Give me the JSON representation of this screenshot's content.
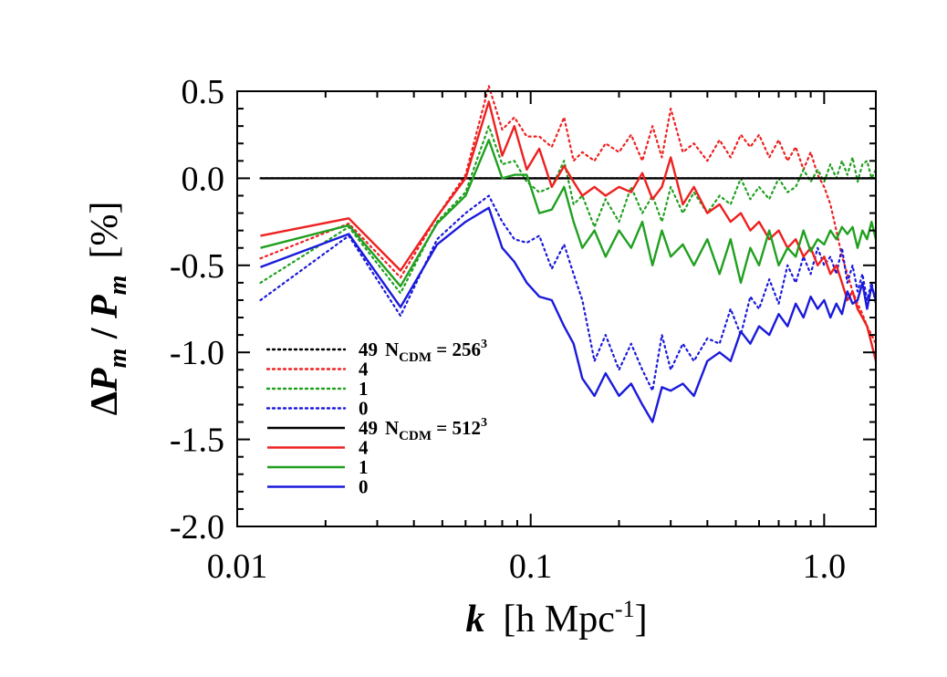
{
  "chart_data": {
    "type": "line",
    "xscale": "log",
    "xlim": [
      0.01,
      1.5
    ],
    "ylim": [
      -2.0,
      0.5
    ],
    "grid": false,
    "legend_position": "bottom-left",
    "xlabel": {
      "k": "k",
      "rest": "[h Mpc",
      "sup": "-1",
      "close": "]"
    },
    "ylabel": {
      "delta": "Δ",
      "p1": "P",
      "sub1": "m",
      "slash": " / ",
      "p2": "P",
      "sub2": "m",
      "unit": "[%]"
    },
    "x_ticks": [
      {
        "value": 0.01,
        "label": "0.01"
      },
      {
        "value": 0.1,
        "label": "0.1"
      },
      {
        "value": 1.0,
        "label": "1.0"
      }
    ],
    "y_ticks": [
      {
        "value": 0.5,
        "label": "0.5"
      },
      {
        "value": 0.0,
        "label": "0.0"
      },
      {
        "value": -0.5,
        "label": "-0.5"
      },
      {
        "value": -1.0,
        "label": "-1.0"
      },
      {
        "value": -1.5,
        "label": "-1.5"
      },
      {
        "value": -2.0,
        "label": "-2.0"
      }
    ],
    "legend": [
      {
        "series": "N256_49",
        "label": "49",
        "suffix": {
          "main": "N",
          "sub": "CDM",
          "eq": " = 256",
          "sup": "3"
        }
      },
      {
        "series": "N256_4",
        "label": "4"
      },
      {
        "series": "N256_1",
        "label": "1"
      },
      {
        "series": "N256_0",
        "label": "0"
      },
      {
        "series": "N512_49",
        "label": "49",
        "suffix": {
          "main": "N",
          "sub": "CDM",
          "eq": " = 512",
          "sup": "3"
        }
      },
      {
        "series": "N512_4",
        "label": "4"
      },
      {
        "series": "N512_1",
        "label": "1"
      },
      {
        "series": "N512_0",
        "label": "0"
      }
    ],
    "series": [
      {
        "id": "N256_49",
        "color": "#000000",
        "style": "dotted",
        "x": [
          0.012,
          0.024,
          0.036,
          0.048,
          0.06,
          0.072,
          0.085,
          0.1,
          0.15,
          0.3,
          0.6,
          1.0,
          1.5
        ],
        "y": [
          0,
          0,
          0,
          0,
          0,
          0,
          0,
          0,
          0,
          0,
          0,
          0,
          0
        ]
      },
      {
        "id": "N256_4",
        "color": "#ee2020",
        "style": "dotted",
        "x": [
          0.012,
          0.024,
          0.036,
          0.048,
          0.06,
          0.072,
          0.08,
          0.088,
          0.097,
          0.107,
          0.118,
          0.13,
          0.14,
          0.15,
          0.165,
          0.18,
          0.2,
          0.22,
          0.24,
          0.26,
          0.28,
          0.3,
          0.33,
          0.36,
          0.4,
          0.44,
          0.48,
          0.52,
          0.56,
          0.6,
          0.65,
          0.7,
          0.75,
          0.8,
          0.85,
          0.9,
          0.95,
          1.0,
          1.05,
          1.1,
          1.15,
          1.2,
          1.25,
          1.3,
          1.35,
          1.4,
          1.45,
          1.5
        ],
        "y": [
          -0.46,
          -0.26,
          -0.57,
          -0.22,
          0.02,
          0.53,
          0.28,
          0.35,
          0.24,
          0.24,
          0.18,
          0.35,
          0.1,
          0.15,
          0.1,
          0.2,
          0.15,
          0.25,
          0.1,
          0.3,
          0.12,
          0.4,
          0.15,
          0.2,
          0.1,
          0.22,
          0.12,
          0.25,
          0.18,
          0.25,
          0.12,
          0.22,
          0.1,
          0.18,
          0.05,
          0.15,
          0.02,
          -0.05,
          -0.15,
          -0.3,
          -0.45,
          -0.55,
          -0.65,
          -0.72,
          -0.78,
          -0.85,
          -0.9,
          -0.95
        ]
      },
      {
        "id": "N256_1",
        "color": "#20a020",
        "style": "dotted",
        "x": [
          0.012,
          0.024,
          0.036,
          0.048,
          0.06,
          0.072,
          0.08,
          0.088,
          0.097,
          0.107,
          0.118,
          0.13,
          0.14,
          0.15,
          0.165,
          0.18,
          0.2,
          0.22,
          0.24,
          0.26,
          0.28,
          0.3,
          0.33,
          0.36,
          0.4,
          0.44,
          0.48,
          0.52,
          0.56,
          0.6,
          0.65,
          0.7,
          0.75,
          0.8,
          0.85,
          0.9,
          0.95,
          1.0,
          1.05,
          1.1,
          1.15,
          1.2,
          1.25,
          1.3,
          1.35,
          1.4,
          1.45,
          1.5
        ],
        "y": [
          -0.6,
          -0.28,
          -0.66,
          -0.25,
          -0.08,
          0.3,
          0.08,
          0.1,
          -0.02,
          -0.08,
          -0.05,
          0.1,
          -0.15,
          -0.1,
          -0.28,
          -0.12,
          -0.25,
          -0.05,
          -0.2,
          -0.1,
          -0.25,
          -0.05,
          -0.2,
          -0.08,
          -0.2,
          -0.1,
          -0.15,
          0.0,
          -0.12,
          -0.05,
          -0.12,
          0.0,
          -0.08,
          -0.05,
          0.05,
          -0.02,
          0.05,
          -0.02,
          0.08,
          0.0,
          0.1,
          0.02,
          0.12,
          -0.02,
          0.08,
          0.1,
          0.0,
          0.05
        ]
      },
      {
        "id": "N256_0",
        "color": "#1a1adb",
        "style": "dotted",
        "x": [
          0.012,
          0.024,
          0.036,
          0.048,
          0.06,
          0.072,
          0.08,
          0.088,
          0.097,
          0.107,
          0.118,
          0.13,
          0.14,
          0.15,
          0.165,
          0.18,
          0.2,
          0.22,
          0.24,
          0.26,
          0.28,
          0.3,
          0.33,
          0.36,
          0.4,
          0.44,
          0.48,
          0.52,
          0.56,
          0.6,
          0.65,
          0.7,
          0.75,
          0.8,
          0.85,
          0.9,
          0.95,
          1.0,
          1.05,
          1.1,
          1.15,
          1.2,
          1.25,
          1.3,
          1.35,
          1.4,
          1.45,
          1.5
        ],
        "y": [
          -0.7,
          -0.33,
          -0.79,
          -0.35,
          -0.2,
          -0.1,
          -0.25,
          -0.35,
          -0.37,
          -0.33,
          -0.52,
          -0.38,
          -0.55,
          -0.7,
          -1.05,
          -0.9,
          -1.1,
          -0.95,
          -1.1,
          -1.22,
          -0.9,
          -1.1,
          -0.95,
          -1.05,
          -0.92,
          -0.95,
          -0.75,
          -0.9,
          -0.68,
          -0.75,
          -0.58,
          -0.72,
          -0.5,
          -0.6,
          -0.45,
          -0.55,
          -0.4,
          -0.5,
          -0.45,
          -0.55,
          -0.4,
          -0.6,
          -0.5,
          -0.65,
          -0.55,
          -0.7,
          -0.6,
          -0.72
        ]
      },
      {
        "id": "N512_49",
        "color": "#000000",
        "style": "solid",
        "x": [
          0.012,
          0.024,
          0.036,
          0.048,
          0.06,
          0.072,
          0.085,
          0.1,
          0.15,
          0.3,
          0.6,
          1.0,
          1.5
        ],
        "y": [
          0,
          0,
          0,
          0,
          0,
          0,
          0,
          0,
          0,
          0,
          0,
          0,
          0
        ]
      },
      {
        "id": "N512_4",
        "color": "#ee2020",
        "style": "solid",
        "x": [
          0.012,
          0.024,
          0.036,
          0.048,
          0.06,
          0.072,
          0.08,
          0.088,
          0.097,
          0.107,
          0.118,
          0.13,
          0.14,
          0.15,
          0.165,
          0.18,
          0.2,
          0.22,
          0.24,
          0.26,
          0.28,
          0.3,
          0.33,
          0.36,
          0.4,
          0.44,
          0.48,
          0.52,
          0.56,
          0.6,
          0.65,
          0.7,
          0.75,
          0.8,
          0.85,
          0.9,
          0.95,
          1.0,
          1.05,
          1.1,
          1.15,
          1.2,
          1.25,
          1.3,
          1.35,
          1.4,
          1.45,
          1.5
        ],
        "y": [
          -0.33,
          -0.23,
          -0.53,
          -0.22,
          0.0,
          0.44,
          0.13,
          0.3,
          0.05,
          0.17,
          -0.05,
          0.07,
          -0.02,
          -0.1,
          -0.05,
          -0.1,
          -0.05,
          -0.08,
          0.03,
          -0.12,
          -0.05,
          0.12,
          -0.15,
          -0.05,
          -0.2,
          -0.15,
          -0.25,
          -0.2,
          -0.3,
          -0.25,
          -0.35,
          -0.3,
          -0.4,
          -0.35,
          -0.45,
          -0.4,
          -0.5,
          -0.45,
          -0.55,
          -0.5,
          -0.6,
          -0.7,
          -0.65,
          -0.75,
          -0.8,
          -0.85,
          -0.95,
          -1.05
        ]
      },
      {
        "id": "N512_1",
        "color": "#20a020",
        "style": "solid",
        "x": [
          0.012,
          0.024,
          0.036,
          0.048,
          0.06,
          0.072,
          0.08,
          0.088,
          0.097,
          0.107,
          0.118,
          0.13,
          0.14,
          0.15,
          0.165,
          0.18,
          0.2,
          0.22,
          0.24,
          0.26,
          0.28,
          0.3,
          0.33,
          0.36,
          0.4,
          0.44,
          0.48,
          0.52,
          0.56,
          0.6,
          0.65,
          0.7,
          0.75,
          0.8,
          0.85,
          0.9,
          0.95,
          1.0,
          1.05,
          1.1,
          1.15,
          1.2,
          1.25,
          1.3,
          1.35,
          1.4,
          1.45,
          1.5
        ],
        "y": [
          -0.4,
          -0.27,
          -0.62,
          -0.26,
          -0.1,
          0.22,
          0.0,
          0.02,
          0.02,
          -0.2,
          -0.18,
          -0.05,
          -0.25,
          -0.4,
          -0.3,
          -0.45,
          -0.3,
          -0.4,
          -0.25,
          -0.5,
          -0.3,
          -0.45,
          -0.38,
          -0.5,
          -0.35,
          -0.55,
          -0.35,
          -0.6,
          -0.4,
          -0.5,
          -0.3,
          -0.5,
          -0.4,
          -0.45,
          -0.3,
          -0.42,
          -0.35,
          -0.38,
          -0.3,
          -0.35,
          -0.28,
          -0.32,
          -0.28,
          -0.4,
          -0.3,
          -0.35,
          -0.25,
          -0.35
        ]
      },
      {
        "id": "N512_0",
        "color": "#1a1adb",
        "style": "solid",
        "x": [
          0.012,
          0.024,
          0.036,
          0.048,
          0.06,
          0.072,
          0.08,
          0.088,
          0.097,
          0.107,
          0.118,
          0.13,
          0.14,
          0.15,
          0.165,
          0.18,
          0.2,
          0.22,
          0.24,
          0.26,
          0.28,
          0.3,
          0.33,
          0.36,
          0.4,
          0.44,
          0.48,
          0.52,
          0.56,
          0.6,
          0.65,
          0.7,
          0.75,
          0.8,
          0.85,
          0.9,
          0.95,
          1.0,
          1.05,
          1.1,
          1.15,
          1.2,
          1.25,
          1.3,
          1.35,
          1.4,
          1.45,
          1.5
        ],
        "y": [
          -0.51,
          -0.32,
          -0.74,
          -0.38,
          -0.25,
          -0.17,
          -0.4,
          -0.48,
          -0.6,
          -0.68,
          -0.7,
          -0.85,
          -0.95,
          -1.15,
          -1.25,
          -1.12,
          -1.25,
          -1.18,
          -1.3,
          -1.4,
          -1.2,
          -1.22,
          -1.18,
          -1.25,
          -1.05,
          -1.0,
          -1.05,
          -0.88,
          -0.95,
          -0.85,
          -0.9,
          -0.78,
          -0.85,
          -0.72,
          -0.8,
          -0.68,
          -0.75,
          -0.7,
          -0.8,
          -0.72,
          -0.78,
          -0.65,
          -0.72,
          -0.7,
          -0.6,
          -0.75,
          -0.62,
          -0.7
        ]
      }
    ]
  }
}
